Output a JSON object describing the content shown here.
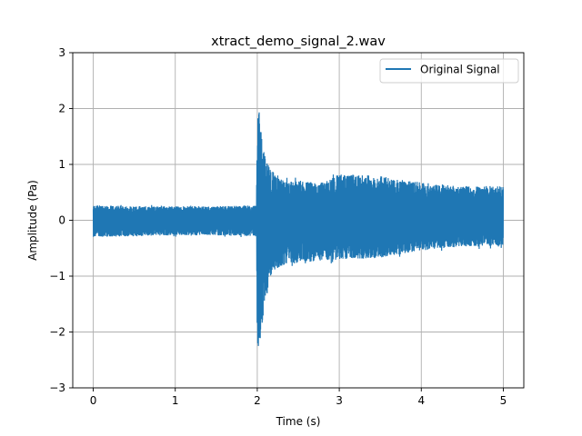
{
  "chart_data": {
    "type": "line",
    "title": "xtract_demo_signal_2.wav",
    "xlabel": "Time (s)",
    "ylabel": "Amplitude (Pa)",
    "xlim": [
      -0.25,
      5.25
    ],
    "ylim": [
      -3,
      3
    ],
    "xticks": [
      0,
      1,
      2,
      3,
      4,
      5
    ],
    "xtick_labels": [
      "0",
      "1",
      "2",
      "3",
      "4",
      "5"
    ],
    "yticks": [
      -3,
      -2,
      -1,
      0,
      1,
      2,
      3
    ],
    "ytick_labels": [
      "−3",
      "−2",
      "−1",
      "0",
      "1",
      "2",
      "3"
    ],
    "grid": true,
    "legend_position": "top-right",
    "series": [
      {
        "name": "Original Signal",
        "color": "#1f77b4",
        "envelope": {
          "x": [
            0,
            0.5,
            1.0,
            1.5,
            1.99,
            2.0,
            2.02,
            2.05,
            2.1,
            2.2,
            2.3,
            2.5,
            2.8,
            3.0,
            3.5,
            4.0,
            4.5,
            5.0
          ],
          "upper": [
            0.3,
            0.28,
            0.28,
            0.28,
            0.3,
            2.3,
            2.2,
            1.7,
            1.2,
            0.95,
            0.8,
            0.78,
            0.75,
            0.92,
            0.88,
            0.75,
            0.68,
            0.68
          ],
          "lower": [
            -0.33,
            -0.32,
            -0.3,
            -0.3,
            -0.32,
            -2.45,
            -2.6,
            -2.2,
            -1.5,
            -1.0,
            -0.9,
            -0.85,
            -0.8,
            -0.78,
            -0.75,
            -0.6,
            -0.52,
            -0.5
          ]
        }
      }
    ]
  }
}
